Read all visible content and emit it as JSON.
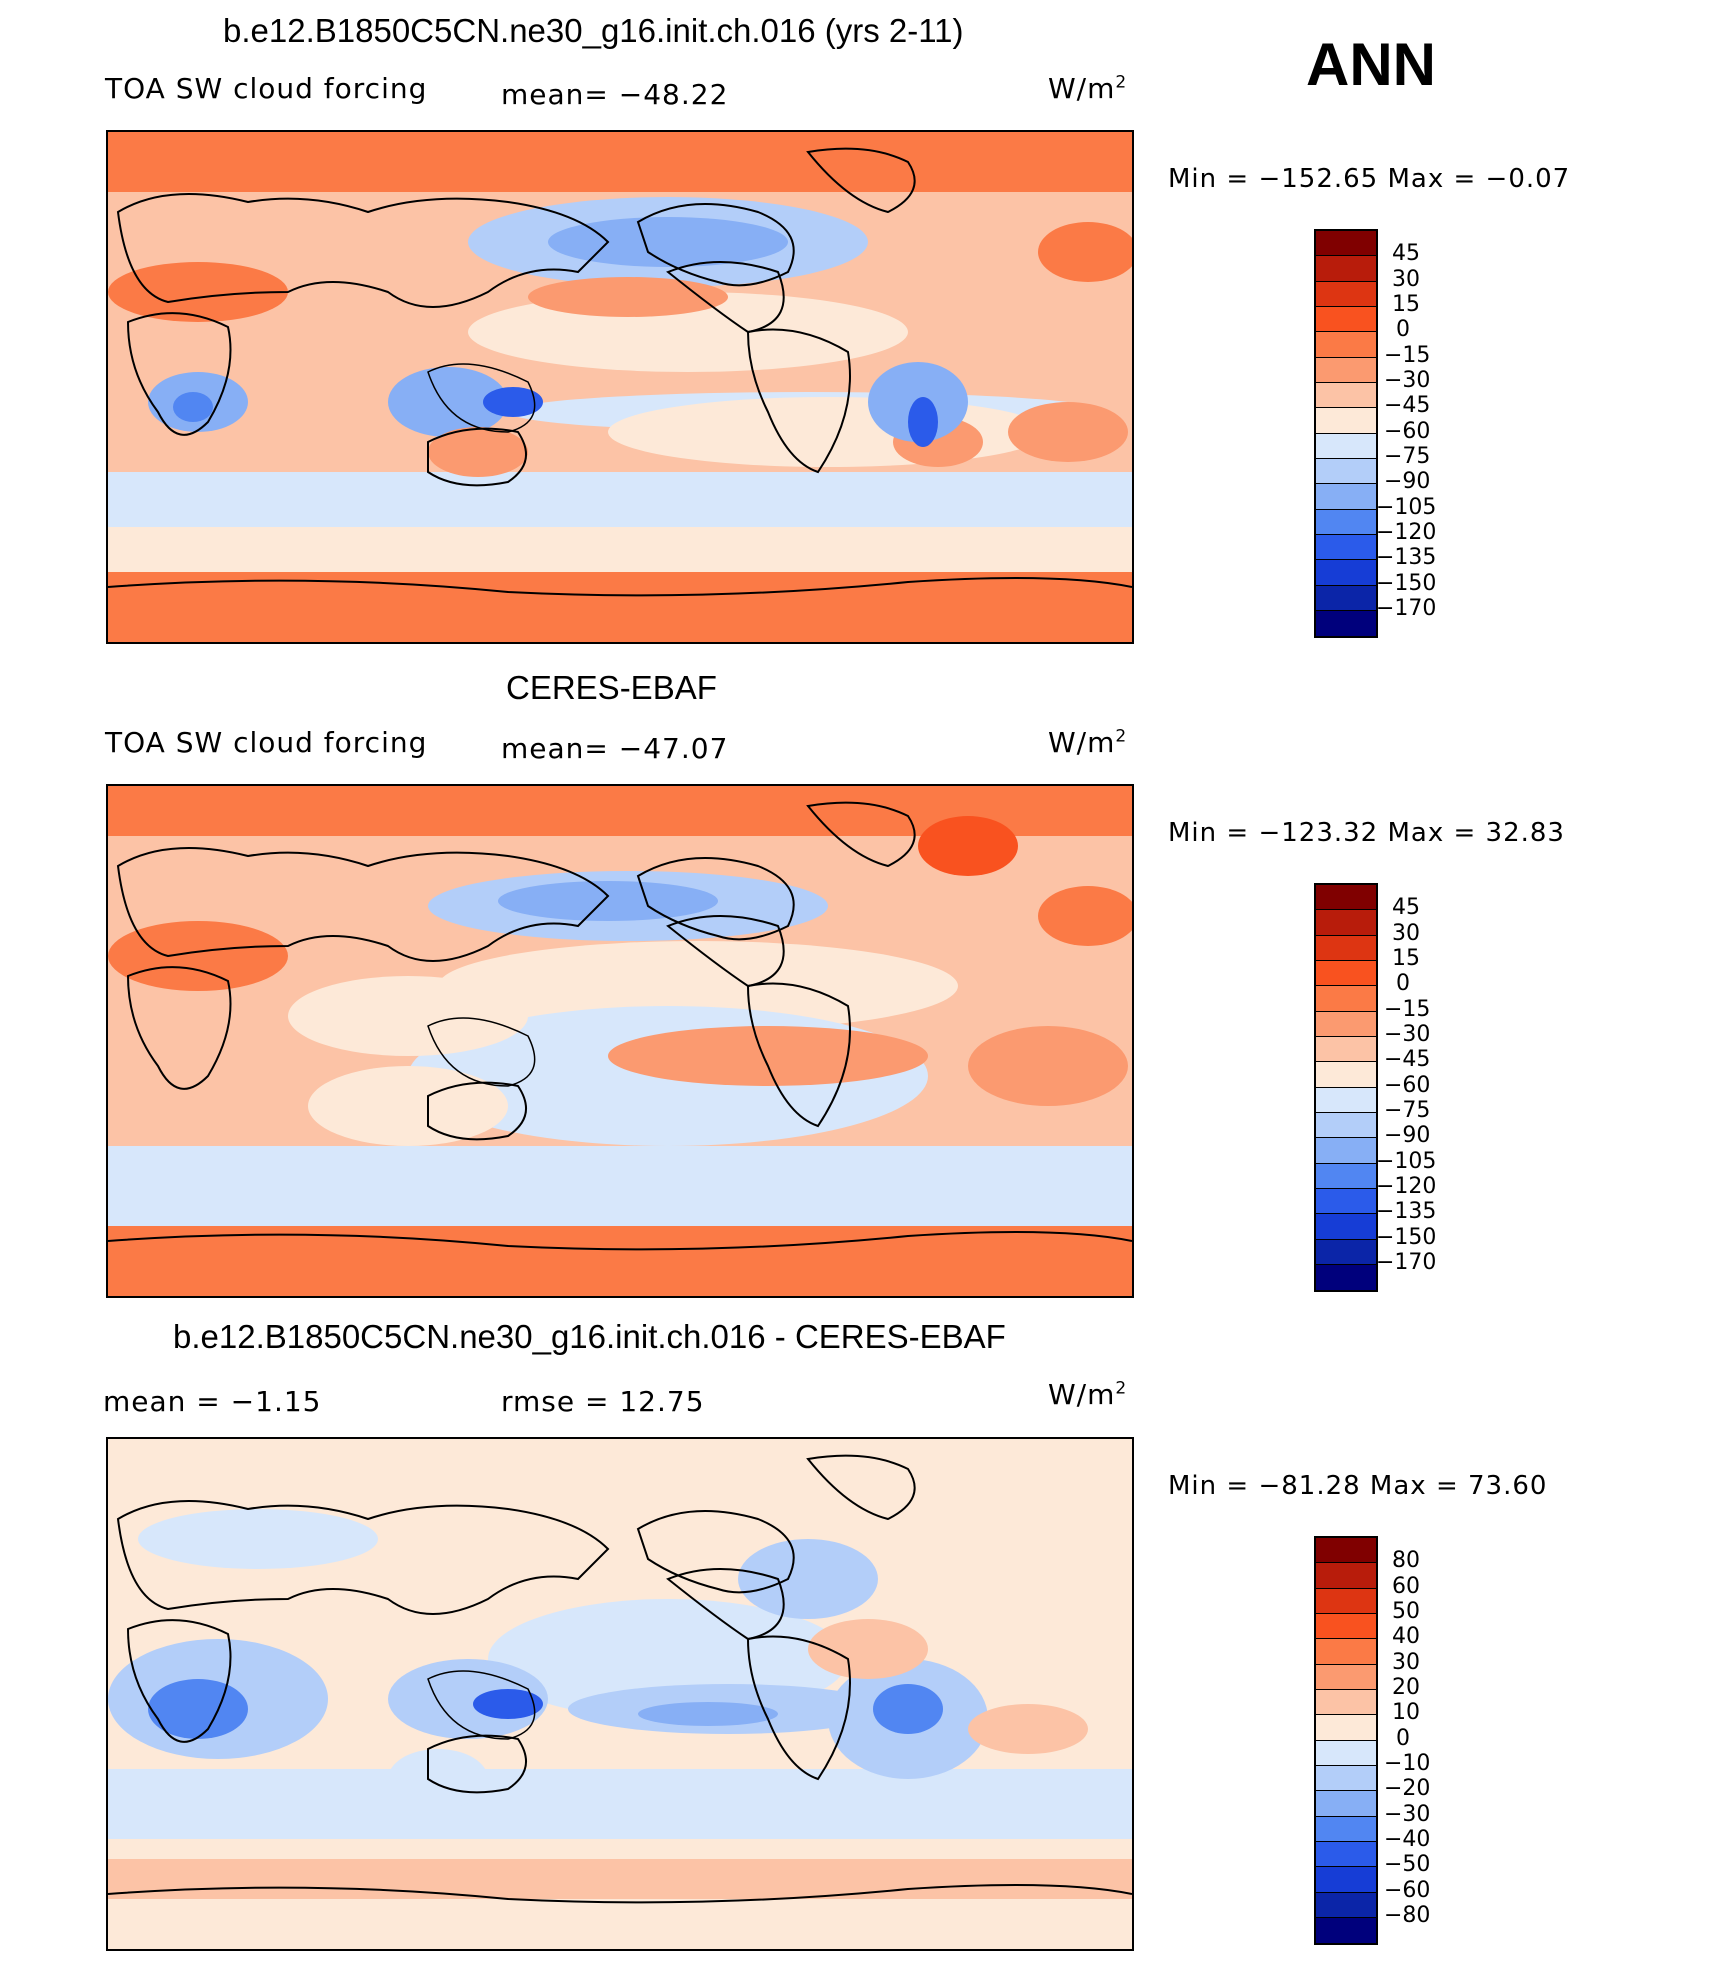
{
  "season": "ANN",
  "panels": [
    {
      "title": "b.e12.B1850C5CN.ne30_g16.init.ch.016 (yrs 2-11)",
      "left_label": "TOA SW cloud forcing",
      "center_label": "mean= −48.22",
      "units": "W/m",
      "units_sup": "2",
      "minmax": "Min = −152.65 Max =  −0.07",
      "colorbar": {
        "labels": [
          "45",
          "30",
          "15",
          "0",
          "−15",
          "−30",
          "−45",
          "−60",
          "−75",
          "−90",
          "−105",
          "−120",
          "−135",
          "−150",
          "−170"
        ],
        "colors": [
          "#800000",
          "#b81c0b",
          "#dd3512",
          "#f9521f",
          "#fb7a46",
          "#fb9a70",
          "#fcc3a6",
          "#fde9d8",
          "#d7e7fb",
          "#b3cef9",
          "#87aff5",
          "#5186f2",
          "#2b5bea",
          "#163dd6",
          "#0b25a8",
          "#00007c"
        ]
      }
    },
    {
      "title": "CERES-EBAF",
      "left_label": "TOA SW cloud forcing",
      "center_label": "mean= −47.07",
      "units": "W/m",
      "units_sup": "2",
      "minmax": "Min = −123.32 Max =  32.83",
      "colorbar": {
        "labels": [
          "45",
          "30",
          "15",
          "0",
          "−15",
          "−30",
          "−45",
          "−60",
          "−75",
          "−90",
          "−105",
          "−120",
          "−135",
          "−150",
          "−170"
        ],
        "colors": [
          "#800000",
          "#b81c0b",
          "#dd3512",
          "#f9521f",
          "#fb7a46",
          "#fb9a70",
          "#fcc3a6",
          "#fde9d8",
          "#d7e7fb",
          "#b3cef9",
          "#87aff5",
          "#5186f2",
          "#2b5bea",
          "#163dd6",
          "#0b25a8",
          "#00007c"
        ]
      }
    },
    {
      "title": "b.e12.B1850C5CN.ne30_g16.init.ch.016 - CERES-EBAF",
      "left_label": "mean =  −1.15",
      "center_label": "rmse =  12.75",
      "units": "W/m",
      "units_sup": "2",
      "minmax": "Min = −81.28 Max =  73.60",
      "colorbar": {
        "labels": [
          "80",
          "60",
          "50",
          "40",
          "30",
          "20",
          "10",
          "0",
          "−10",
          "−20",
          "−30",
          "−40",
          "−50",
          "−60",
          "−80"
        ],
        "colors": [
          "#800000",
          "#b81c0b",
          "#dd3512",
          "#f9521f",
          "#fb7a46",
          "#fb9a70",
          "#fcc3a6",
          "#fde9d8",
          "#d7e7fb",
          "#b3cef9",
          "#87aff5",
          "#5186f2",
          "#2b5bea",
          "#163dd6",
          "#0b25a8",
          "#00007c"
        ]
      }
    }
  ]
}
